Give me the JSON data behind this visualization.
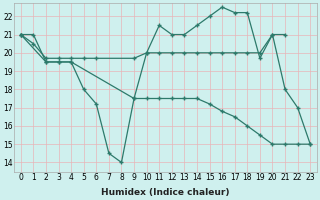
{
  "xlabel": "Humidex (Indice chaleur)",
  "bg_color": "#cff0ee",
  "grid_color": "#e8b4b8",
  "line_color": "#2d7a6b",
  "xlim": [
    -0.5,
    23.5
  ],
  "ylim": [
    13.5,
    22.7
  ],
  "yticks": [
    14,
    15,
    16,
    17,
    18,
    19,
    20,
    21,
    22
  ],
  "xticks": [
    0,
    1,
    2,
    3,
    4,
    5,
    6,
    7,
    8,
    9,
    10,
    11,
    12,
    13,
    14,
    15,
    16,
    17,
    18,
    19,
    20,
    21,
    22,
    23
  ],
  "series": [
    {
      "x": [
        0,
        1,
        2,
        3,
        4,
        9,
        10,
        11,
        12,
        13,
        14,
        15,
        16,
        17,
        18,
        19,
        20,
        21,
        22,
        23
      ],
      "y": [
        21,
        21,
        19.5,
        19.5,
        19.5,
        17.5,
        20,
        21.5,
        21,
        21,
        21.5,
        22,
        22.5,
        22.2,
        22.2,
        19.7,
        21,
        18,
        17,
        15
      ]
    },
    {
      "x": [
        0,
        1,
        2,
        3,
        4,
        5,
        6,
        9,
        10,
        11,
        12,
        13,
        14,
        15,
        16,
        17,
        18,
        19,
        20,
        21
      ],
      "y": [
        21,
        20.5,
        19.7,
        19.7,
        19.7,
        19.7,
        19.7,
        19.7,
        20,
        20,
        20,
        20,
        20,
        20,
        20,
        20,
        20,
        20,
        21,
        21
      ]
    },
    {
      "x": [
        0,
        2,
        3,
        4,
        5,
        6,
        7,
        8,
        9,
        10,
        11,
        12,
        13,
        14,
        15,
        16,
        17,
        18,
        19,
        20,
        21,
        22,
        23
      ],
      "y": [
        21,
        19.5,
        19.5,
        19.5,
        18,
        17.2,
        14.5,
        14,
        17.5,
        17.5,
        17.5,
        17.5,
        17.5,
        17.5,
        17.2,
        16.8,
        16.5,
        16,
        15.5,
        15,
        15,
        15,
        15
      ]
    }
  ]
}
